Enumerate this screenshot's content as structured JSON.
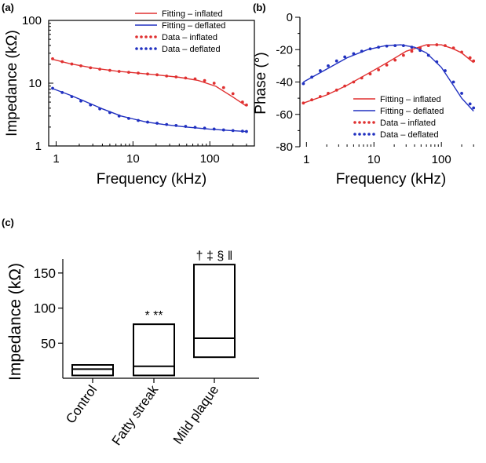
{
  "chart_data": [
    {
      "type": "line",
      "panel_label": "(a)",
      "xlabel": "Frequency (kHz)",
      "ylabel": "Impedance (kΩ)",
      "xscale": "log",
      "yscale": "log",
      "xlim": [
        0.8,
        380
      ],
      "ylim": [
        1,
        100
      ],
      "xticks": [
        1,
        10,
        100
      ],
      "xtick_labels": [
        "1",
        "10",
        "100"
      ],
      "yticks": [
        1,
        10,
        100
      ],
      "ytick_labels": [
        "1",
        "10",
        "100"
      ],
      "legend_position": "top-right",
      "series": [
        {
          "name": "Fitting – inflated",
          "style": "solid",
          "color": "#e03030",
          "x": [
            0.9,
            1.5,
            3,
            6,
            10,
            20,
            40,
            70,
            120,
            200,
            300
          ],
          "y": [
            24,
            20.5,
            17.5,
            15.6,
            14.7,
            13.6,
            12.4,
            11.1,
            8.9,
            6.0,
            4.3
          ]
        },
        {
          "name": "Fitting – deflated",
          "style": "solid",
          "color": "#2030c0",
          "x": [
            0.9,
            1.5,
            2.5,
            4,
            7,
            10,
            15,
            25,
            50,
            100,
            200,
            300
          ],
          "y": [
            8.2,
            6.5,
            5.0,
            3.9,
            3.0,
            2.7,
            2.4,
            2.2,
            2.0,
            1.85,
            1.75,
            1.7
          ]
        },
        {
          "name": "Data – inflated",
          "style": "dotted",
          "color": "#e03030",
          "x": [
            0.9,
            1.2,
            1.6,
            2.1,
            2.8,
            3.7,
            5,
            6.6,
            8.8,
            11.7,
            15.5,
            20.6,
            27.4,
            36.4,
            48.4,
            64.3,
            85.5,
            113.7,
            151,
            200,
            266,
            300
          ],
          "y": [
            24.5,
            22,
            20.2,
            18.9,
            17.6,
            16.7,
            16,
            15.4,
            14.9,
            14.5,
            14,
            13.6,
            13,
            12.6,
            12.1,
            11.7,
            11,
            10,
            8.5,
            6.8,
            5.0,
            4.5
          ]
        },
        {
          "name": "Data – deflated",
          "style": "dotted",
          "color": "#2030c0",
          "x": [
            0.9,
            1.2,
            1.6,
            2.1,
            2.8,
            3.7,
            5,
            6.6,
            8.8,
            11.7,
            15.5,
            20.6,
            27.4,
            36.4,
            48.4,
            64.3,
            85.5,
            113.7,
            151,
            200,
            266,
            300
          ],
          "y": [
            8.3,
            7.1,
            6.1,
            5.2,
            4.5,
            3.9,
            3.4,
            3.0,
            2.75,
            2.55,
            2.4,
            2.3,
            2.2,
            2.12,
            2.05,
            1.98,
            1.92,
            1.86,
            1.8,
            1.76,
            1.72,
            1.7
          ]
        }
      ]
    },
    {
      "type": "line",
      "panel_label": "(b)",
      "xlabel": "Frequency (kHz)",
      "ylabel": "Phase (°)",
      "xscale": "log",
      "yscale": "linear",
      "xlim": [
        0.8,
        380
      ],
      "ylim": [
        -80,
        0
      ],
      "xticks": [
        1,
        10,
        100
      ],
      "xtick_labels": [
        "1",
        "10",
        "100"
      ],
      "yticks": [
        -80,
        -60,
        -40,
        -20,
        0
      ],
      "ytick_labels": [
        "-80",
        "-60",
        "-40",
        "-20",
        "0"
      ],
      "legend_position": "bottom-right",
      "series": [
        {
          "name": "Fitting – inflated",
          "style": "solid",
          "color": "#e03030",
          "x": [
            0.9,
            2,
            4,
            8,
            15,
            30,
            60,
            100,
            150,
            200,
            300
          ],
          "y": [
            -53,
            -48,
            -42,
            -35,
            -28.5,
            -21,
            -17,
            -17,
            -19.5,
            -22,
            -28
          ]
        },
        {
          "name": "Fitting – deflated",
          "style": "solid",
          "color": "#2030c0",
          "x": [
            0.9,
            2,
            4,
            8,
            15,
            25,
            40,
            60,
            100,
            150,
            200,
            300
          ],
          "y": [
            -40,
            -32,
            -25,
            -20,
            -17.5,
            -17,
            -18.5,
            -22,
            -31,
            -42,
            -50,
            -58
          ]
        },
        {
          "name": "Data – inflated",
          "style": "dotted",
          "color": "#e03030",
          "x": [
            0.9,
            1.2,
            1.6,
            2.1,
            2.8,
            3.7,
            5,
            6.6,
            8.8,
            11.7,
            15.5,
            20.6,
            27.4,
            36.4,
            48.4,
            64.3,
            85.5,
            113.7,
            151,
            200,
            266,
            300
          ],
          "y": [
            -53,
            -51,
            -49,
            -47,
            -45,
            -42.5,
            -40,
            -37.5,
            -35,
            -32.5,
            -29.5,
            -26.5,
            -23.5,
            -21,
            -19,
            -17.5,
            -17,
            -17.5,
            -19,
            -21.5,
            -25,
            -27
          ]
        },
        {
          "name": "Data – deflated",
          "style": "dotted",
          "color": "#2030c0",
          "x": [
            0.9,
            1.2,
            1.6,
            2.1,
            2.8,
            3.7,
            5,
            6.6,
            8.8,
            11.7,
            15.5,
            20.6,
            27.4,
            36.4,
            48.4,
            64.3,
            85.5,
            113.7,
            151,
            200,
            266,
            300
          ],
          "y": [
            -41,
            -37,
            -33,
            -30,
            -27,
            -24.5,
            -22.5,
            -21,
            -19.5,
            -18.5,
            -17.8,
            -17.5,
            -17.5,
            -18.5,
            -20.5,
            -23.5,
            -27.5,
            -33,
            -40,
            -47,
            -53.5,
            -56
          ]
        }
      ]
    },
    {
      "type": "box",
      "panel_label": "(c)",
      "ylabel": "Impedance (kΩ)",
      "ylim": [
        0,
        170
      ],
      "yticks": [
        50,
        100,
        150
      ],
      "ytick_labels": [
        "50",
        "100",
        "150"
      ],
      "categories": [
        "Control",
        "Fatty streak",
        "Mild plaque"
      ],
      "boxes": [
        {
          "category": "Control",
          "q1": 4,
          "median": 13,
          "q3": 19,
          "annotation": ""
        },
        {
          "category": "Fatty streak",
          "q1": 4,
          "median": 17,
          "q3": 77,
          "annotation": "*   **"
        },
        {
          "category": "Mild plaque",
          "q1": 30,
          "median": 57,
          "q3": 162,
          "annotation": "† ‡ § ‖"
        }
      ]
    }
  ]
}
